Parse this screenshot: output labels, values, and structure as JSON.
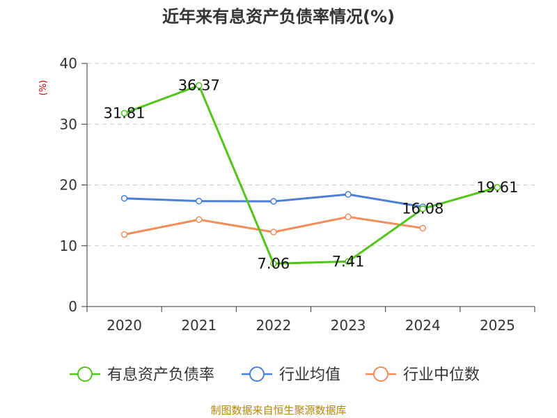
{
  "chart_data": {
    "type": "line",
    "title": "近年来有息资产负债率情况(%)",
    "xlabel": "",
    "ylabel": "(%)",
    "categories": [
      "2020",
      "2021",
      "2022",
      "2023",
      "2024",
      "2025"
    ],
    "ylim": [
      0,
      40
    ],
    "yticks": [
      0,
      10,
      20,
      30,
      40
    ],
    "grid": true,
    "legend_position": "bottom",
    "series": [
      {
        "name": "有息资产负债率",
        "color": "#52c41a",
        "values": [
          31.81,
          36.37,
          7.06,
          7.41,
          16.08,
          19.61
        ],
        "labels": [
          "31.81",
          "36.37",
          "7.06",
          "7.41",
          "16.08",
          "19.61"
        ]
      },
      {
        "name": "行业均值",
        "color": "#4a7fd9",
        "values": [
          17.8,
          17.35,
          17.3,
          18.45,
          16.4,
          null
        ]
      },
      {
        "name": "行业中位数",
        "color": "#f28c5a",
        "values": [
          11.85,
          14.3,
          12.25,
          14.75,
          12.9,
          null
        ]
      }
    ]
  },
  "footer": {
    "source": "制图数据来自恒生聚源数据库"
  },
  "colors": {
    "title": "#333333",
    "ylabel": "#cc0000",
    "axis": "#333333",
    "grid": "#c8c8c8",
    "footer": "#b8860b"
  }
}
